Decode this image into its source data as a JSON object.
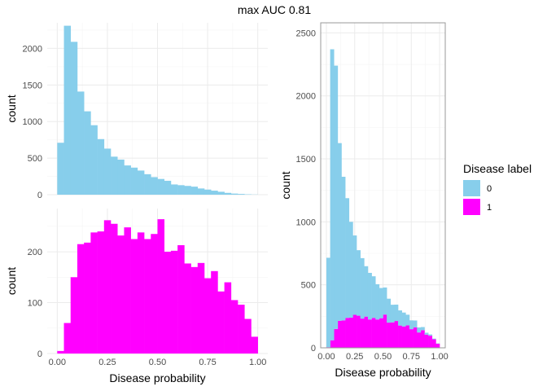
{
  "title": "max AUC 0.81",
  "colors": {
    "label_0": "#87CEEB",
    "label_1": "#FF00FF",
    "grid_major": "#EBEBEB",
    "grid_minor": "#F5F5F5",
    "panel_border": "#999999"
  },
  "legend": {
    "title": "Disease label",
    "entries": [
      "0",
      "1"
    ]
  },
  "chart_data": [
    {
      "type": "bar",
      "kind": "histogram",
      "panel": "top-left",
      "title": "",
      "xlabel": "",
      "ylabel": "count",
      "grid": true,
      "bin_width": 0.0333,
      "xlim": [
        -0.05,
        1.05
      ],
      "ylim": [
        0,
        2350
      ],
      "xticks": [],
      "yticks": [
        0,
        500,
        1000,
        1500,
        2000
      ],
      "series": [
        {
          "name": "0",
          "x": [
            0.0167,
            0.05,
            0.0833,
            0.1167,
            0.15,
            0.1833,
            0.2167,
            0.25,
            0.2833,
            0.3167,
            0.35,
            0.3833,
            0.4167,
            0.45,
            0.4833,
            0.5167,
            0.55,
            0.5833,
            0.6167,
            0.65,
            0.6833,
            0.7167,
            0.75,
            0.7833,
            0.8167,
            0.85,
            0.8833,
            0.9167,
            0.95,
            0.9833
          ],
          "values": [
            710,
            2310,
            2090,
            1410,
            1140,
            950,
            760,
            630,
            520,
            480,
            400,
            370,
            330,
            280,
            240,
            215,
            190,
            140,
            130,
            120,
            110,
            85,
            70,
            55,
            40,
            25,
            15,
            10,
            5,
            2
          ]
        }
      ]
    },
    {
      "type": "bar",
      "kind": "histogram",
      "panel": "bottom-left",
      "title": "",
      "xlabel": "Disease probability",
      "ylabel": "count",
      "grid": true,
      "bin_width": 0.0333,
      "xlim": [
        -0.05,
        1.05
      ],
      "ylim": [
        0,
        285
      ],
      "xticks": [
        "0.00",
        "0.25",
        "0.50",
        "0.75",
        "1.00"
      ],
      "xtick_values": [
        0,
        0.25,
        0.5,
        0.75,
        1
      ],
      "yticks": [
        0,
        100,
        200
      ],
      "series": [
        {
          "name": "1",
          "x": [
            0.0167,
            0.05,
            0.0833,
            0.1167,
            0.15,
            0.1833,
            0.2167,
            0.25,
            0.2833,
            0.3167,
            0.35,
            0.3833,
            0.4167,
            0.45,
            0.4833,
            0.5167,
            0.55,
            0.5833,
            0.6167,
            0.65,
            0.6833,
            0.7167,
            0.75,
            0.7833,
            0.8167,
            0.85,
            0.8833,
            0.9167,
            0.95,
            0.9833
          ],
          "values": [
            5,
            60,
            150,
            215,
            218,
            238,
            240,
            262,
            255,
            232,
            248,
            225,
            238,
            225,
            235,
            264,
            200,
            202,
            213,
            177,
            170,
            178,
            148,
            162,
            122,
            140,
            105,
            96,
            68,
            33
          ]
        }
      ]
    },
    {
      "type": "bar",
      "kind": "stacked histogram",
      "panel": "right",
      "title": "",
      "xlabel": "Disease probability",
      "ylabel": "count",
      "grid": true,
      "stacked": true,
      "bin_width": 0.0333,
      "xlim": [
        -0.05,
        1.05
      ],
      "ylim": [
        0,
        2580
      ],
      "xticks": [
        "0.00",
        "0.25",
        "0.50",
        "0.75",
        "1.00"
      ],
      "xtick_values": [
        0,
        0.25,
        0.5,
        0.75,
        1
      ],
      "yticks": [
        0,
        500,
        1000,
        1500,
        2000,
        2500
      ],
      "series": [
        {
          "name": "1",
          "x": [
            0.0167,
            0.05,
            0.0833,
            0.1167,
            0.15,
            0.1833,
            0.2167,
            0.25,
            0.2833,
            0.3167,
            0.35,
            0.3833,
            0.4167,
            0.45,
            0.4833,
            0.5167,
            0.55,
            0.5833,
            0.6167,
            0.65,
            0.6833,
            0.7167,
            0.75,
            0.7833,
            0.8167,
            0.85,
            0.8833,
            0.9167,
            0.95,
            0.9833
          ],
          "values": [
            5,
            60,
            150,
            215,
            218,
            238,
            240,
            262,
            255,
            232,
            248,
            225,
            238,
            225,
            235,
            264,
            200,
            202,
            213,
            177,
            170,
            178,
            148,
            162,
            122,
            140,
            105,
            96,
            68,
            33
          ]
        },
        {
          "name": "0",
          "x": [
            0.0167,
            0.05,
            0.0833,
            0.1167,
            0.15,
            0.1833,
            0.2167,
            0.25,
            0.2833,
            0.3167,
            0.35,
            0.3833,
            0.4167,
            0.45,
            0.4833,
            0.5167,
            0.55,
            0.5833,
            0.6167,
            0.65,
            0.6833,
            0.7167,
            0.75,
            0.7833,
            0.8167,
            0.85,
            0.8833,
            0.9167,
            0.95,
            0.9833
          ],
          "values": [
            710,
            2310,
            2090,
            1410,
            1140,
            950,
            760,
            630,
            520,
            480,
            400,
            370,
            330,
            280,
            240,
            215,
            190,
            140,
            130,
            120,
            110,
            85,
            70,
            55,
            40,
            25,
            15,
            10,
            5,
            2
          ]
        }
      ]
    }
  ]
}
